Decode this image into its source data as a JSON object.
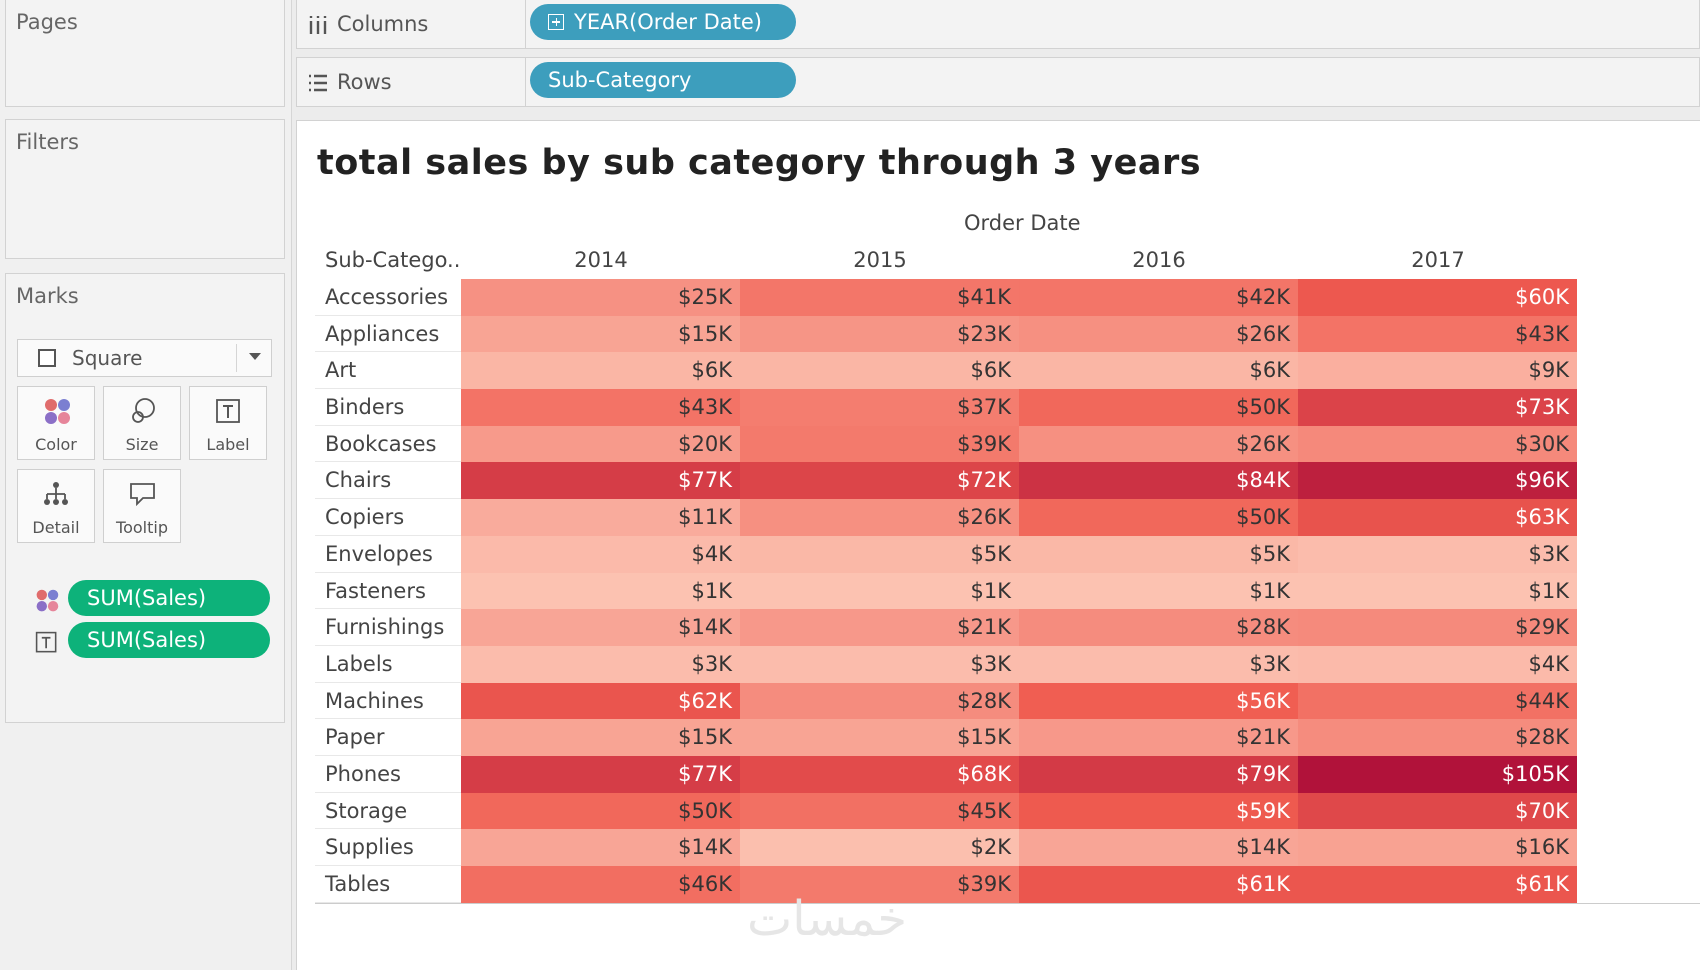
{
  "left_panel": {
    "pages_title": "Pages",
    "filters_title": "Filters",
    "marks_title": "Marks",
    "mark_type": "Square",
    "buttons": {
      "color": "Color",
      "size": "Size",
      "label": "Label",
      "detail": "Detail",
      "tooltip": "Tooltip"
    },
    "pills": [
      {
        "text": "SUM(Sales)",
        "icon": "color-dots-icon"
      },
      {
        "text": "SUM(Sales)",
        "icon": "label-t-icon"
      }
    ]
  },
  "shelves": {
    "columns_label": "Columns",
    "columns_pill": "YEAR(Order Date)",
    "rows_label": "Rows",
    "rows_pill": "Sub-Category"
  },
  "viz": {
    "title": "total sales by sub category through 3 years",
    "column_field": "Order Date",
    "row_header": "Sub-Catego..",
    "watermark": "خمسات"
  },
  "chart_data": {
    "type": "heatmap",
    "title": "total sales by sub category through 3 years",
    "x_label": "Order Date",
    "y_label": "Sub-Catego..",
    "columns": [
      "2014",
      "2015",
      "2016",
      "2017"
    ],
    "rows": [
      "Accessories",
      "Appliances",
      "Art",
      "Binders",
      "Bookcases",
      "Chairs",
      "Copiers",
      "Envelopes",
      "Fasteners",
      "Furnishings",
      "Labels",
      "Machines",
      "Paper",
      "Phones",
      "Storage",
      "Supplies",
      "Tables"
    ],
    "values": [
      [
        25,
        41,
        42,
        60
      ],
      [
        15,
        23,
        26,
        43
      ],
      [
        6,
        6,
        6,
        9
      ],
      [
        43,
        37,
        50,
        73
      ],
      [
        20,
        39,
        26,
        30
      ],
      [
        77,
        72,
        84,
        96
      ],
      [
        11,
        26,
        50,
        63
      ],
      [
        4,
        5,
        5,
        3
      ],
      [
        1,
        1,
        1,
        1
      ],
      [
        14,
        21,
        28,
        29
      ],
      [
        3,
        3,
        3,
        4
      ],
      [
        62,
        28,
        56,
        44
      ],
      [
        15,
        15,
        21,
        28
      ],
      [
        77,
        68,
        79,
        105
      ],
      [
        50,
        45,
        59,
        70
      ],
      [
        14,
        2,
        14,
        16
      ],
      [
        46,
        39,
        61,
        61
      ]
    ],
    "labels": [
      [
        "$25K",
        "$41K",
        "$42K",
        "$60K"
      ],
      [
        "$15K",
        "$23K",
        "$26K",
        "$43K"
      ],
      [
        "$6K",
        "$6K",
        "$6K",
        "$9K"
      ],
      [
        "$43K",
        "$37K",
        "$50K",
        "$73K"
      ],
      [
        "$20K",
        "$39K",
        "$26K",
        "$30K"
      ],
      [
        "$77K",
        "$72K",
        "$84K",
        "$96K"
      ],
      [
        "$11K",
        "$26K",
        "$50K",
        "$63K"
      ],
      [
        "$4K",
        "$5K",
        "$5K",
        "$3K"
      ],
      [
        "$1K",
        "$1K",
        "$1K",
        "$1K"
      ],
      [
        "$14K",
        "$21K",
        "$28K",
        "$29K"
      ],
      [
        "$3K",
        "$3K",
        "$3K",
        "$4K"
      ],
      [
        "$62K",
        "$28K",
        "$56K",
        "$44K"
      ],
      [
        "$15K",
        "$15K",
        "$21K",
        "$28K"
      ],
      [
        "$77K",
        "$68K",
        "$79K",
        "$105K"
      ],
      [
        "$50K",
        "$45K",
        "$59K",
        "$70K"
      ],
      [
        "$14K",
        "$2K",
        "$14K",
        "$16K"
      ],
      [
        "$46K",
        "$39K",
        "$61K",
        "$61K"
      ]
    ],
    "unit": "$K",
    "color_low": "#fcc5b4",
    "color_high": "#b1123a"
  }
}
